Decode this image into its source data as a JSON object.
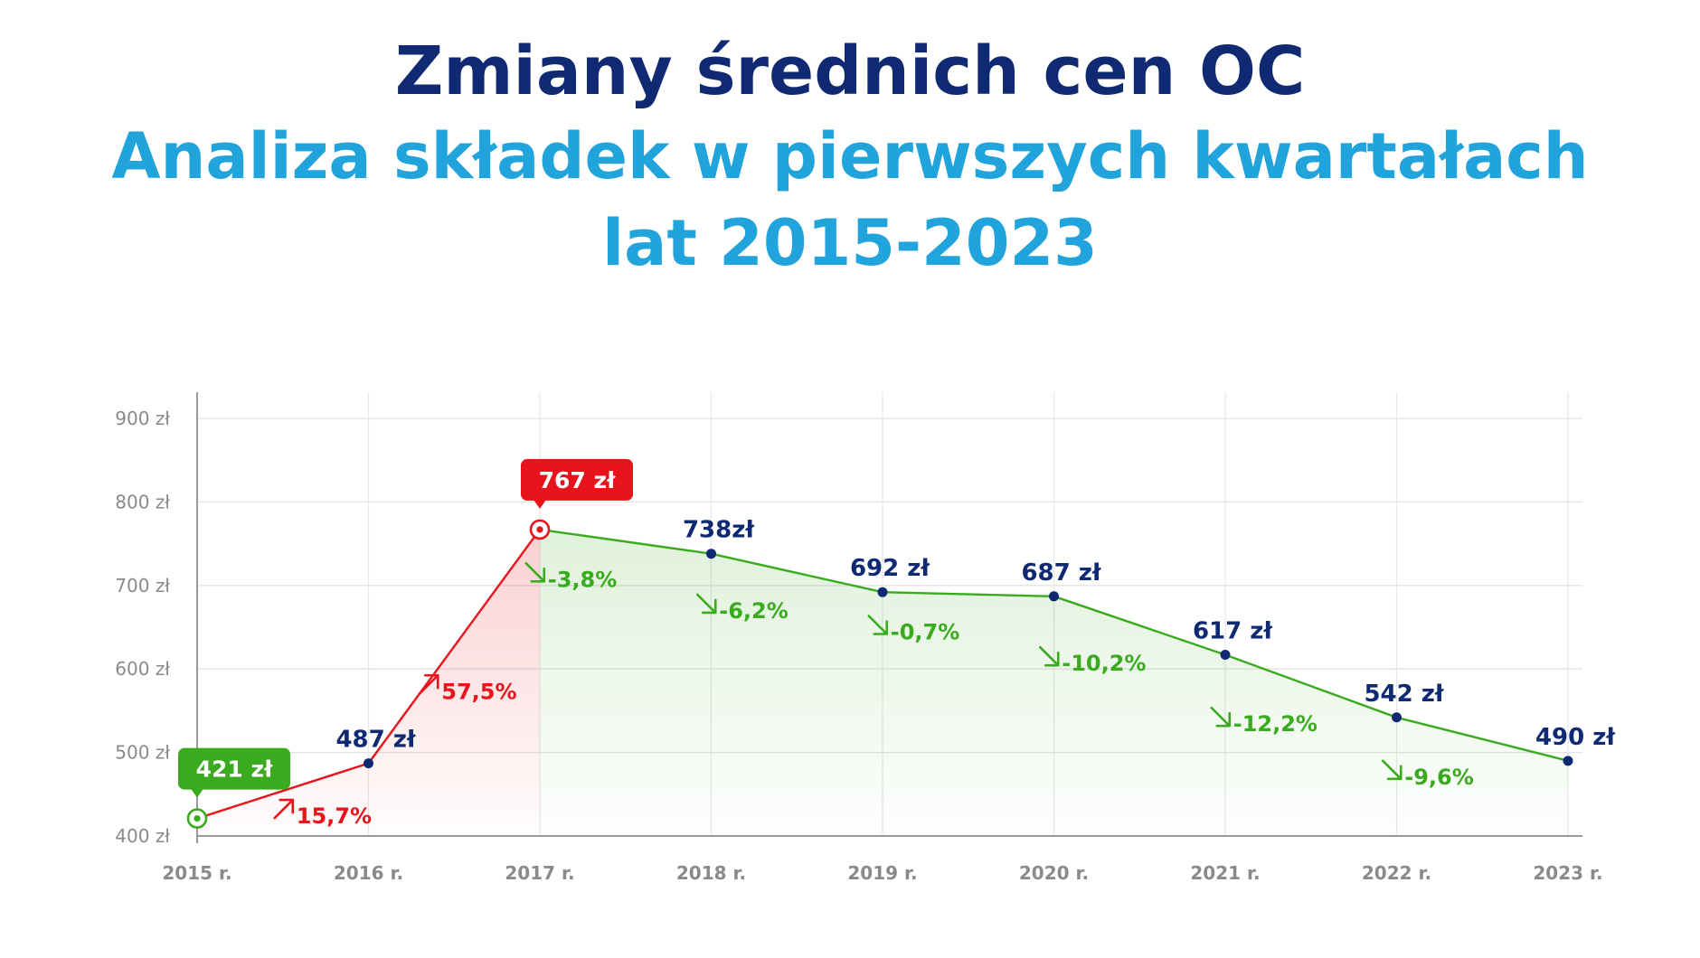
{
  "title": "Zmiany średnich cen OC",
  "subtitle_line1": "Analiza składek w pierwszych kwartałach",
  "subtitle_line2": "lat 2015-2023",
  "colors": {
    "title": "#0f2a73",
    "subtitle": "#21a3dc",
    "rise": "#e8141b",
    "fall": "#3aaa1f",
    "value_label": "#0f2a73",
    "axis_text": "#8a8a8a"
  },
  "chart_data": {
    "type": "line",
    "categories": [
      "2015 r.",
      "2016 r.",
      "2017 r.",
      "2018 r.",
      "2019 r.",
      "2020 r.",
      "2021 r.",
      "2022 r.",
      "2023 r."
    ],
    "values": [
      421,
      487,
      767,
      738,
      692,
      687,
      617,
      542,
      490
    ],
    "value_labels": [
      "421 zł",
      "487 zł",
      "767 zł",
      "738zł",
      "692 zł",
      "687 zł",
      "617 zł",
      "542 zł",
      "490 zł"
    ],
    "changes": [
      "15,7%",
      "57,5%",
      "-3,8%",
      "-6,2%",
      "-0,7%",
      "-10,2%",
      "-12,2%",
      "-9,6%"
    ],
    "change_direction": [
      "up",
      "up",
      "down",
      "down",
      "down",
      "down",
      "down",
      "down"
    ],
    "y_ticks": [
      "400 zł",
      "500 zł",
      "600 zł",
      "700 zł",
      "800 zł",
      "900 zł"
    ],
    "y_tick_values": [
      400,
      500,
      600,
      700,
      800,
      900
    ],
    "ylim": [
      400,
      900
    ],
    "highlighted": {
      "min_index": 0,
      "max_index": 2
    },
    "grid": true,
    "legend": "none"
  }
}
